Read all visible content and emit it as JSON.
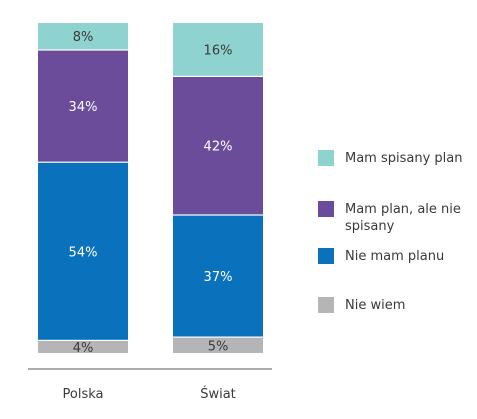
{
  "chart_data": {
    "type": "bar",
    "stacked": true,
    "categories": [
      "Polska",
      "Świat"
    ],
    "series": [
      {
        "name": "Nie wiem",
        "values": [
          4,
          5
        ],
        "color": "#b5b5b8",
        "label_color": "#3a3a3a"
      },
      {
        "name": "Nie mam planu",
        "values": [
          54,
          37
        ],
        "color": "#0a72bd",
        "label_color": "#ffffff"
      },
      {
        "name": "Mam plan, ale nie spisany",
        "values": [
          34,
          42
        ],
        "color": "#6b4c9a",
        "label_color": "#ffffff"
      },
      {
        "name": "Mam spisany plan",
        "values": [
          8,
          16
        ],
        "color": "#8ed3cf",
        "label_color": "#3a3a3a"
      }
    ],
    "data_labels": [
      [
        "4%",
        "54%",
        "34%",
        "8%"
      ],
      [
        "5%",
        "37%",
        "42%",
        "16%"
      ]
    ],
    "legend": {
      "position": "right",
      "entries": [
        {
          "lines": [
            "Mam spisany plan"
          ],
          "color": "#8ed3cf"
        },
        {
          "lines": [
            "Mam plan, ale nie",
            "spisany"
          ],
          "color": "#6b4c9a"
        },
        {
          "lines": [
            "Nie mam planu"
          ],
          "color": "#0a72bd"
        },
        {
          "lines": [
            "Nie wiem"
          ],
          "color": "#b5b5b8"
        }
      ]
    },
    "ylim": [
      0,
      100
    ],
    "grid": false
  }
}
